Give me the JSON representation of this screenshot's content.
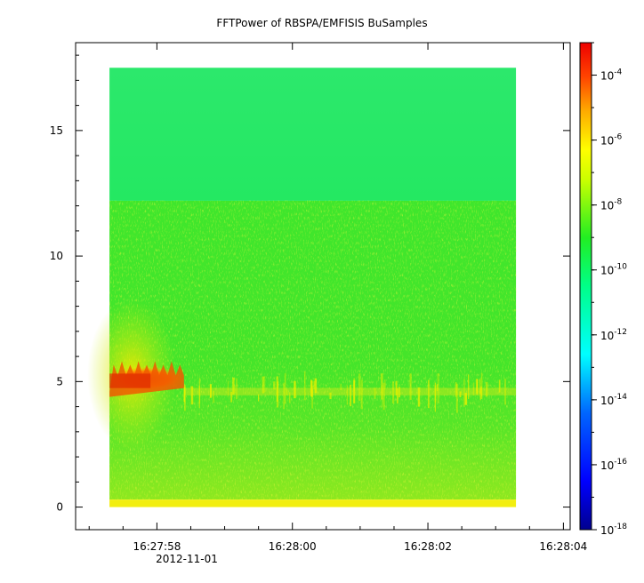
{
  "chart_data": {
    "type": "heatmap",
    "title": "FFTPower of RBSPA/EMFISIS  BuSamples",
    "xlabel": "",
    "ylabel": "",
    "x_tick_labels": [
      "16:27:58",
      "16:28:00",
      "16:28:02",
      "16:28:04"
    ],
    "x_date_label": "2012-11-01",
    "x_range": [
      "16:27:56.8",
      "16:28:04.1"
    ],
    "y_range": [
      -0.9,
      18.5
    ],
    "y_ticks": [
      0,
      5,
      10,
      15
    ],
    "data_x_range": [
      "16:27:57.3",
      "16:28:03.3"
    ],
    "data_y_range": [
      0,
      17.5
    ],
    "colorbar": {
      "scale": "log",
      "range": [
        1e-18,
        0.001
      ],
      "tick_values": [
        1e-18,
        1e-16,
        1e-14,
        1e-12,
        1e-10,
        1e-08,
        1e-06,
        0.0001
      ],
      "tick_labels": [
        {
          "base": "10",
          "exp": "-18"
        },
        {
          "base": "10",
          "exp": "-16"
        },
        {
          "base": "10",
          "exp": "-14"
        },
        {
          "base": "10",
          "exp": "-12"
        },
        {
          "base": "10",
          "exp": "-10"
        },
        {
          "base": "10",
          "exp": "-8"
        },
        {
          "base": "10",
          "exp": "-6"
        },
        {
          "base": "10",
          "exp": "-4"
        }
      ]
    },
    "grid": false,
    "bands": [
      {
        "y_range": [
          12.2,
          17.5
        ],
        "level": "~1e-12",
        "color": "#22ee66"
      },
      {
        "y_range": [
          0.3,
          12.2
        ],
        "level": "~1e-10",
        "color": "#40e62a"
      },
      {
        "y_range": [
          0,
          0.3
        ],
        "level": "~1e-8",
        "color": "#f2ee10"
      }
    ],
    "features": [
      {
        "name": "intense emission",
        "x_range": [
          "16:27:57.3",
          "16:27:58.4"
        ],
        "y_range": [
          4.6,
          5.6
        ],
        "level": "~1e-5"
      }
    ]
  }
}
